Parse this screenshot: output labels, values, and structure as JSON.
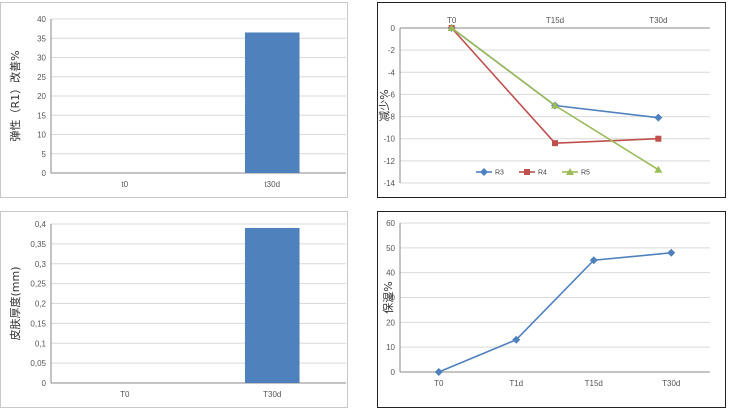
{
  "chart_data": [
    {
      "type": "bar",
      "categories": [
        "t0",
        "t30d"
      ],
      "values": [
        0,
        36.5
      ],
      "ylabel": "弹性（R1）改善%",
      "xlabel": "",
      "ylim": [
        0,
        40
      ],
      "yticks": [
        "0",
        "5",
        "10",
        "15",
        "20",
        "25",
        "30",
        "35",
        "40"
      ],
      "grid": true,
      "color": "#4f81bd"
    },
    {
      "type": "line",
      "x": [
        "T0",
        "T15d",
        "T30d"
      ],
      "series": [
        {
          "name": "R3",
          "values": [
            0,
            -7,
            -8.1
          ],
          "color": "#4f81bd",
          "marker": "diamond"
        },
        {
          "name": "R4",
          "values": [
            0,
            -10.4,
            -10
          ],
          "color": "#c0504d",
          "marker": "square"
        },
        {
          "name": "R5",
          "values": [
            0,
            -7,
            -12.8
          ],
          "color": "#9bbb59",
          "marker": "triangle"
        }
      ],
      "ylabel": "减少%",
      "xlabel": "",
      "ylim": [
        -14,
        0
      ],
      "yticks": [
        "0",
        "-2",
        "-4",
        "-6",
        "-8",
        "-10",
        "-12",
        "-14"
      ],
      "x_axis_position": "top",
      "grid": true,
      "legend": "bottom"
    },
    {
      "type": "bar",
      "categories": [
        "T0",
        "T30d"
      ],
      "values": [
        0,
        0.39
      ],
      "ylabel": "皮肤厚度(mm)",
      "xlabel": "",
      "ylim": [
        0,
        0.4
      ],
      "yticks": [
        "0",
        "0,05",
        "0,1",
        "0,15",
        "0,2",
        "0,25",
        "0,3",
        "0,35",
        "0,4"
      ],
      "grid": true,
      "color": "#4f81bd"
    },
    {
      "type": "line",
      "x": [
        "T0",
        "T1d",
        "T15d",
        "T30d"
      ],
      "series": [
        {
          "values": [
            0,
            13,
            45,
            48
          ],
          "color": "#4f81bd",
          "marker": "diamond"
        }
      ],
      "ylabel": "保湿%",
      "xlabel": "",
      "ylim": [
        0,
        60
      ],
      "yticks": [
        "0",
        "10",
        "20",
        "30",
        "40",
        "50",
        "60"
      ],
      "grid": true
    }
  ]
}
